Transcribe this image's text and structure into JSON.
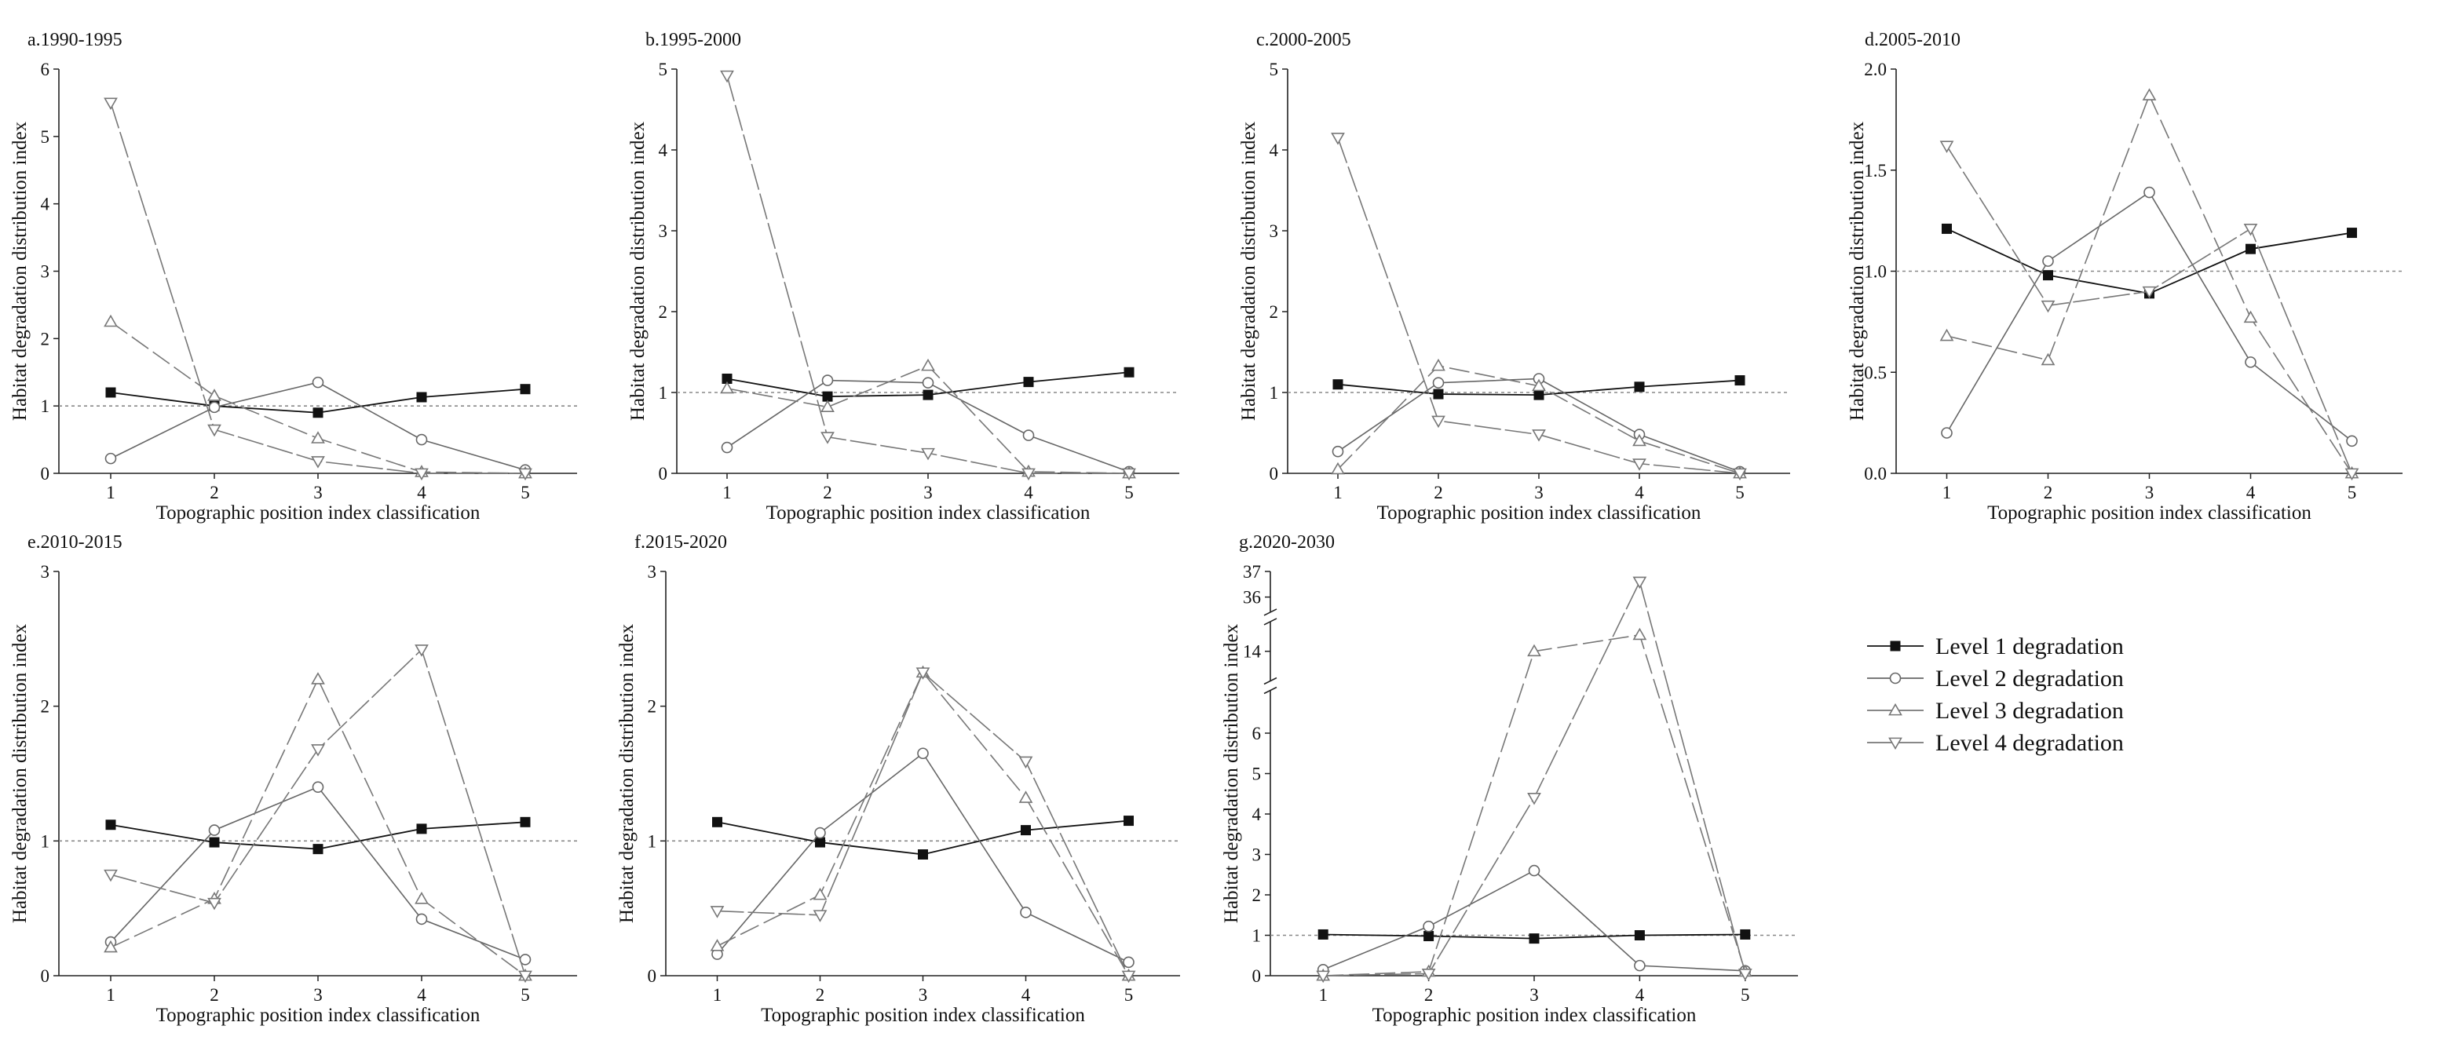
{
  "chart_data": [
    {
      "type": "line",
      "panel": "a",
      "title": "a.1990-1995",
      "xlabel": "Topographic position index classification",
      "ylabel": "Habitat degradation distribution index",
      "x": [
        1,
        2,
        3,
        4,
        5
      ],
      "xlim": [
        0.5,
        5.5
      ],
      "ylim": [
        0,
        6
      ],
      "yticks": [
        0,
        1,
        2,
        3,
        4,
        5,
        6
      ],
      "reference_line": 1,
      "series": [
        {
          "name": "Level 1 degradation",
          "values": [
            1.2,
            1.0,
            0.9,
            1.13,
            1.25
          ]
        },
        {
          "name": "Level 2 degradation",
          "values": [
            0.22,
            0.98,
            1.35,
            0.5,
            0.05
          ]
        },
        {
          "name": "Level 3 degradation",
          "values": [
            2.25,
            1.15,
            0.52,
            0.02,
            0.0
          ]
        },
        {
          "name": "Level 4 degradation",
          "values": [
            5.5,
            0.65,
            0.18,
            0.0,
            0.0
          ]
        }
      ]
    },
    {
      "type": "line",
      "panel": "b",
      "title": "b.1995-2000",
      "xlabel": "Topographic position index classification",
      "ylabel": "Habitat degradation distribution index",
      "x": [
        1,
        2,
        3,
        4,
        5
      ],
      "xlim": [
        0.5,
        5.5
      ],
      "ylim": [
        0,
        5
      ],
      "yticks": [
        0,
        1,
        2,
        3,
        4,
        5
      ],
      "reference_line": 1,
      "series": [
        {
          "name": "Level 1 degradation",
          "values": [
            1.17,
            0.95,
            0.97,
            1.13,
            1.25
          ]
        },
        {
          "name": "Level 2 degradation",
          "values": [
            0.32,
            1.15,
            1.12,
            0.47,
            0.02
          ]
        },
        {
          "name": "Level 3 degradation",
          "values": [
            1.05,
            0.82,
            1.33,
            0.02,
            0.0
          ]
        },
        {
          "name": "Level 4 degradation",
          "values": [
            4.92,
            0.45,
            0.25,
            0.0,
            0.0
          ]
        }
      ]
    },
    {
      "type": "line",
      "panel": "c",
      "title": "c.2000-2005",
      "xlabel": "Topographic position index classification",
      "ylabel": "Habitat degradation distribution index",
      "x": [
        1,
        2,
        3,
        4,
        5
      ],
      "xlim": [
        0.5,
        5.5
      ],
      "ylim": [
        0,
        5
      ],
      "yticks": [
        0,
        1,
        2,
        3,
        4,
        5
      ],
      "reference_line": 1,
      "series": [
        {
          "name": "Level 1 degradation",
          "values": [
            1.1,
            0.98,
            0.97,
            1.07,
            1.15
          ]
        },
        {
          "name": "Level 2 degradation",
          "values": [
            0.27,
            1.12,
            1.17,
            0.48,
            0.02
          ]
        },
        {
          "name": "Level 3 degradation",
          "values": [
            0.05,
            1.33,
            1.08,
            0.4,
            0.0
          ]
        },
        {
          "name": "Level 4 degradation",
          "values": [
            4.15,
            0.65,
            0.48,
            0.12,
            0.0
          ]
        }
      ]
    },
    {
      "type": "line",
      "panel": "d",
      "title": "d.2005-2010",
      "xlabel": "Topographic position index classification",
      "ylabel": "Habitat degradation distribution index",
      "x": [
        1,
        2,
        3,
        4,
        5
      ],
      "xlim": [
        0.5,
        5.5
      ],
      "ylim": [
        0,
        2
      ],
      "yticks": [
        0,
        0.5,
        1.0,
        1.5,
        2.0
      ],
      "ytick_labels": [
        "0.0",
        "0.5",
        "1.0",
        "1.5",
        "2.0"
      ],
      "reference_line": 1,
      "series": [
        {
          "name": "Level 1 degradation",
          "values": [
            1.21,
            0.98,
            0.89,
            1.11,
            1.19
          ]
        },
        {
          "name": "Level 2 degradation",
          "values": [
            0.2,
            1.05,
            1.39,
            0.55,
            0.16
          ]
        },
        {
          "name": "Level 3 degradation",
          "values": [
            0.68,
            0.56,
            1.87,
            0.77,
            0.0
          ]
        },
        {
          "name": "Level 4 degradation",
          "values": [
            1.62,
            0.83,
            0.9,
            1.21,
            0.0
          ]
        }
      ]
    },
    {
      "type": "line",
      "panel": "e",
      "title": "e.2010-2015",
      "xlabel": "Topographic position index classification",
      "ylabel": "Habitat degradation distribution index",
      "x": [
        1,
        2,
        3,
        4,
        5
      ],
      "xlim": [
        0.5,
        5.5
      ],
      "ylim": [
        0,
        3
      ],
      "yticks": [
        0,
        1,
        2,
        3
      ],
      "reference_line": 1,
      "series": [
        {
          "name": "Level 1 degradation",
          "values": [
            1.12,
            0.99,
            0.94,
            1.09,
            1.14
          ]
        },
        {
          "name": "Level 2 degradation",
          "values": [
            0.25,
            1.08,
            1.4,
            0.42,
            0.12
          ]
        },
        {
          "name": "Level 3 degradation",
          "values": [
            0.21,
            0.57,
            2.2,
            0.57,
            0.0
          ]
        },
        {
          "name": "Level 4 degradation",
          "values": [
            0.75,
            0.54,
            1.68,
            2.42,
            0.0
          ]
        }
      ]
    },
    {
      "type": "line",
      "panel": "f",
      "title": "f.2015-2020",
      "xlabel": "Topographic position index classification",
      "ylabel": "Habitat degradation distribution index",
      "x": [
        1,
        2,
        3,
        4,
        5
      ],
      "xlim": [
        0.5,
        5.5
      ],
      "ylim": [
        0,
        3
      ],
      "yticks": [
        0,
        1,
        2,
        3
      ],
      "reference_line": 1,
      "series": [
        {
          "name": "Level 1 degradation",
          "values": [
            1.14,
            0.99,
            0.9,
            1.08,
            1.15
          ]
        },
        {
          "name": "Level 2 degradation",
          "values": [
            0.16,
            1.06,
            1.65,
            0.47,
            0.1
          ]
        },
        {
          "name": "Level 3 degradation",
          "values": [
            0.22,
            0.6,
            2.25,
            1.32,
            0.0
          ]
        },
        {
          "name": "Level 4 degradation",
          "values": [
            0.48,
            0.45,
            2.25,
            1.59,
            0.0
          ]
        }
      ]
    },
    {
      "type": "line",
      "panel": "g",
      "title": "g.2020-2030",
      "xlabel": "Topographic position index classification",
      "ylabel": "Habitat degradation distribution index",
      "x": [
        1,
        2,
        3,
        4,
        5
      ],
      "xlim": [
        0.5,
        5.5
      ],
      "broken_axis": true,
      "yticks": [
        0,
        1,
        2,
        3,
        4,
        5,
        6,
        14,
        36,
        37
      ],
      "y_segments": [
        {
          "range": [
            0,
            7
          ]
        },
        {
          "range": [
            13.5,
            14.5
          ]
        },
        {
          "range": [
            35.5,
            37
          ]
        }
      ],
      "reference_line": 1,
      "series": [
        {
          "name": "Level 1 degradation",
          "values": [
            1.02,
            0.98,
            0.92,
            1.0,
            1.02
          ]
        },
        {
          "name": "Level 2 degradation",
          "values": [
            0.15,
            1.22,
            2.6,
            0.25,
            0.12
          ]
        },
        {
          "name": "Level 3 degradation",
          "values": [
            0.0,
            0.1,
            14.0,
            14.3,
            0.1
          ]
        },
        {
          "name": "Level 4 degradation",
          "values": [
            0.0,
            0.05,
            4.4,
            36.6,
            0.05
          ]
        }
      ]
    }
  ],
  "legend": {
    "location": "right of panel g",
    "items": [
      {
        "label": "Level 1 degradation",
        "marker": "square-filled"
      },
      {
        "label": "Level 2 degradation",
        "marker": "circle-open"
      },
      {
        "label": "Level 3 degradation",
        "marker": "triangle-up-open"
      },
      {
        "label": "Level 4 degradation",
        "marker": "triangle-down-open"
      }
    ]
  },
  "colors": {
    "level1": "#111111",
    "level2": "#666666",
    "level3": "#777777",
    "level4": "#777777",
    "reference": "#888888",
    "axis": "#222222"
  }
}
